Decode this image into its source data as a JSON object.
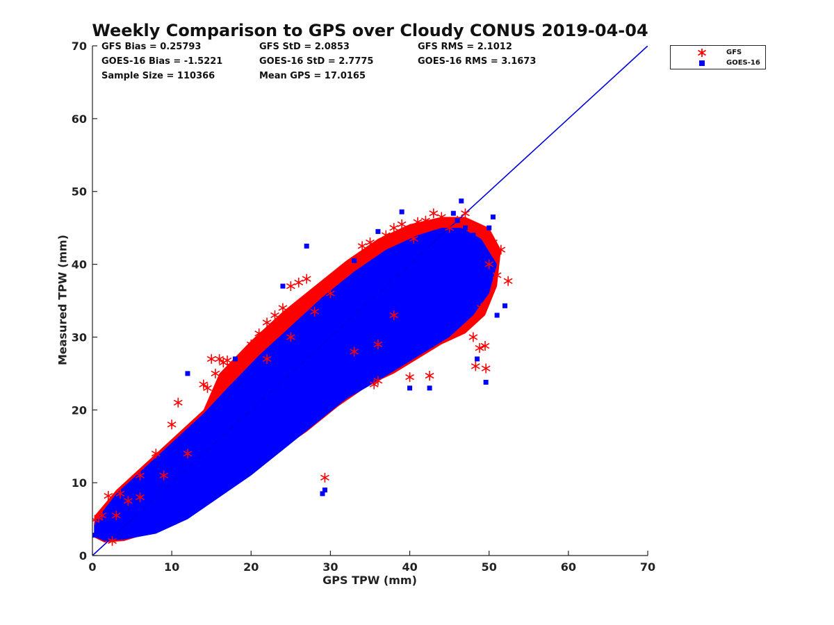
{
  "chart_data": {
    "type": "scatter",
    "title": "Weekly Comparison to GPS over Cloudy CONUS 2019-04-04",
    "xlabel": "GPS TPW (mm)",
    "ylabel": "Measured TPW (mm)",
    "xlim": [
      0,
      70
    ],
    "ylim": [
      0,
      70
    ],
    "xticks": [
      0,
      10,
      20,
      30,
      40,
      50,
      60,
      70
    ],
    "yticks": [
      0,
      10,
      20,
      30,
      40,
      50,
      60,
      70
    ],
    "grid": false,
    "legend_position": "outside-top-right",
    "stats": {
      "gfs_bias": "GFS Bias = 0.25793",
      "gfs_std": "GFS StD = 2.0853",
      "gfs_rms": "GFS RMS = 2.1012",
      "goes_bias": "GOES-16 Bias = -1.5221",
      "goes_std": "GOES-16 StD = 2.7775",
      "goes_rms": "GOES-16 RMS = 3.1673",
      "sample_size": "Sample Size = 110366",
      "mean_gps": "Mean GPS = 17.0165"
    },
    "reference_line": {
      "x": [
        0,
        70
      ],
      "y": [
        0,
        70
      ],
      "color": "#0000dd"
    },
    "series": [
      {
        "name": "GFS",
        "marker": "asterisk",
        "color": "#ff0000",
        "x": [
          0.3,
          0.8,
          1.2,
          2.0,
          2.5,
          3.5,
          4.5,
          6.0,
          8.0,
          10.0,
          10.8,
          14.0,
          14.5,
          15.0,
          15.5,
          16.0,
          16.5,
          17.0,
          17.5,
          18.0,
          19.0,
          20.0,
          21.0,
          22.0,
          23.0,
          24.0,
          25.0,
          26.0,
          27.0,
          29.3,
          30.0,
          32.0,
          34.0,
          35.0,
          35.5,
          36.0,
          37.0,
          38.0,
          39.0,
          40.0,
          41.0,
          42.0,
          42.5,
          43.0,
          44.0,
          45.0,
          46.0,
          47.0,
          48.0,
          48.3,
          48.8,
          49.0,
          49.5,
          49.6,
          50.0,
          50.5,
          51.0,
          51.5,
          52.4,
          40.5,
          38.0,
          36.0,
          33.0,
          28.0,
          25.0,
          22.0,
          12.0,
          9.0,
          6.0,
          3.0
        ],
        "y": [
          4.9,
          5.2,
          5.5,
          8.2,
          2.0,
          8.5,
          7.5,
          11.0,
          14.0,
          18.0,
          21.0,
          23.5,
          23.0,
          27.0,
          25.0,
          27.0,
          26.5,
          26.8,
          26.0,
          25.0,
          26.5,
          29.0,
          30.5,
          32.0,
          33.0,
          34.0,
          37.0,
          37.5,
          38.0,
          10.7,
          36.0,
          39.0,
          42.5,
          43.0,
          23.5,
          24.0,
          44.0,
          45.0,
          45.5,
          24.5,
          45.8,
          46.0,
          24.7,
          47.0,
          46.5,
          45.0,
          46.0,
          47.0,
          30.0,
          26.0,
          28.5,
          34.0,
          28.8,
          25.7,
          40.0,
          43.0,
          38.5,
          42.0,
          37.7,
          43.5,
          33.0,
          29.0,
          28.0,
          33.5,
          30.0,
          27.0,
          14.0,
          11.0,
          8.0,
          5.5
        ]
      },
      {
        "name": "GOES-16",
        "marker": "square",
        "color": "#0000ff",
        "x": [
          0.2,
          1.0,
          2.0,
          3.0,
          4.0,
          5.0,
          6.0,
          7.0,
          8.0,
          9.0,
          10.0,
          11.0,
          12.0,
          13.0,
          14.0,
          15.0,
          16.0,
          17.0,
          18.0,
          19.0,
          20.0,
          21.0,
          22.0,
          23.0,
          24.0,
          25.0,
          26.0,
          27.0,
          28.0,
          29.0,
          29.3,
          30.0,
          31.0,
          32.0,
          33.0,
          34.0,
          35.0,
          36.0,
          37.0,
          38.0,
          39.0,
          40.0,
          41.0,
          42.0,
          43.0,
          44.0,
          45.0,
          45.5,
          46.0,
          47.0,
          48.0,
          49.0,
          49.6,
          50.0,
          51.0,
          52.0,
          40.0,
          42.5,
          29.0,
          12.0,
          18.0,
          24.0,
          27.0,
          33.0,
          36.0,
          39.0,
          46.5,
          48.5,
          50.5
        ],
        "y": [
          2.8,
          3.0,
          3.5,
          4.5,
          5.0,
          5.5,
          6.0,
          7.0,
          8.0,
          9.0,
          10.0,
          11.0,
          12.0,
          13.0,
          14.0,
          15.0,
          16.0,
          17.0,
          18.0,
          19.0,
          20.0,
          21.0,
          22.0,
          23.0,
          24.0,
          25.0,
          26.0,
          27.0,
          28.0,
          29.0,
          9.0,
          30.0,
          31.0,
          32.0,
          33.0,
          34.0,
          35.0,
          36.0,
          37.0,
          38.0,
          39.0,
          40.0,
          41.0,
          42.0,
          42.5,
          43.0,
          44.0,
          47.0,
          46.0,
          45.0,
          44.0,
          42.0,
          23.8,
          45.0,
          33.0,
          34.3,
          23.0,
          23.0,
          8.5,
          25.0,
          27.0,
          37.0,
          42.5,
          40.5,
          44.5,
          47.2,
          48.7,
          27.0,
          46.5
        ]
      }
    ]
  }
}
